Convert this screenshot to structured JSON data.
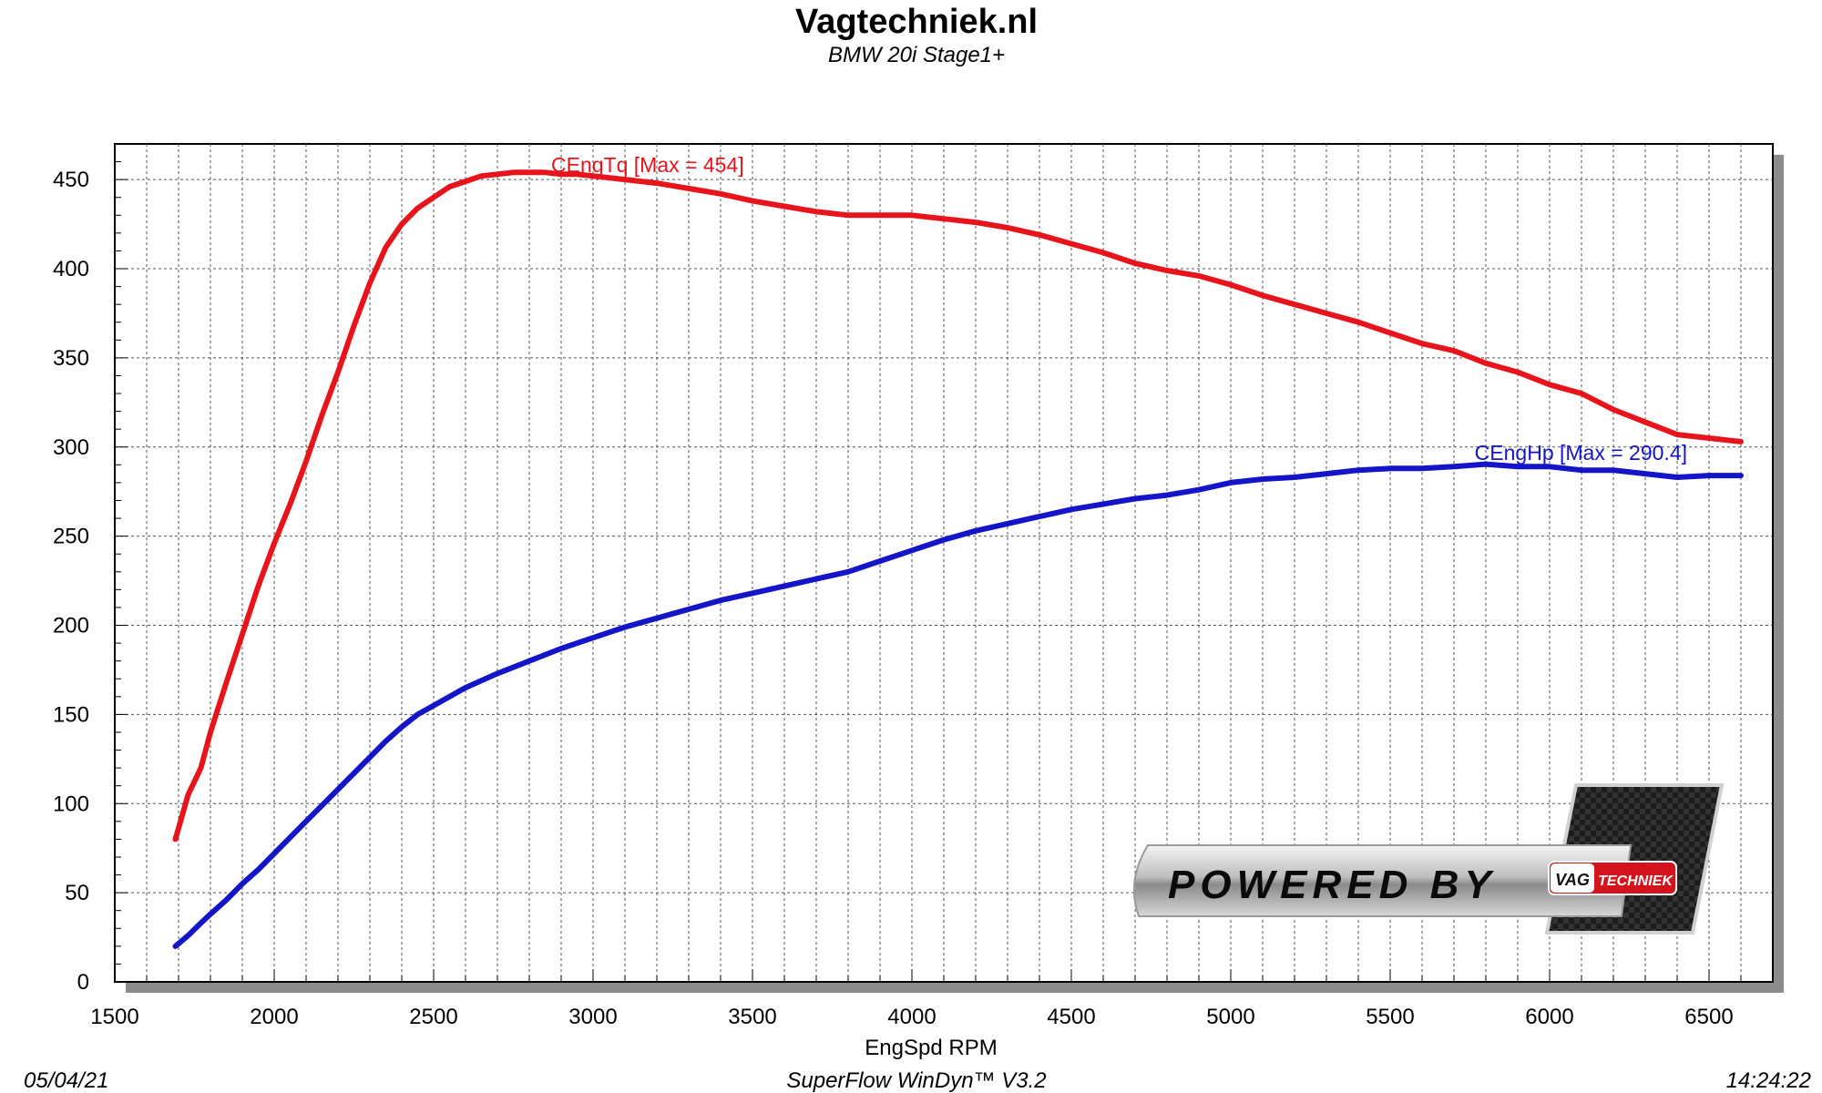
{
  "header": {
    "title": "Vagtechniek.nl",
    "subtitle": "BMW 20i Stage1+"
  },
  "footer": {
    "date": "05/04/21",
    "software": "SuperFlow WinDyn™  V3.2",
    "time": "14:24:22"
  },
  "logo": {
    "text": "POWERED BY",
    "brand_left": "VAG",
    "brand_right": "TECHNIEK"
  },
  "chart_data": {
    "type": "line",
    "title": "Vagtechniek.nl",
    "subtitle": "BMW 20i Stage1+",
    "xlabel": "EngSpd RPM",
    "ylabel": "",
    "xlim": [
      1500,
      6700
    ],
    "ylim": [
      0,
      470
    ],
    "x_ticks": [
      1500,
      2000,
      2500,
      3000,
      3500,
      4000,
      4500,
      5000,
      5500,
      6000,
      6500
    ],
    "y_ticks": [
      0,
      50,
      100,
      150,
      200,
      250,
      300,
      350,
      400,
      450
    ],
    "grid": true,
    "series": [
      {
        "name": "CEngTq",
        "label": "CEngTq [Max = 454]",
        "color": "#e8141c",
        "x": [
          1690,
          1730,
          1770,
          1800,
          1850,
          1900,
          1950,
          2000,
          2050,
          2100,
          2150,
          2200,
          2250,
          2300,
          2350,
          2400,
          2450,
          2500,
          2550,
          2600,
          2650,
          2700,
          2750,
          2800,
          2850,
          2900,
          2950,
          3000,
          3100,
          3200,
          3300,
          3400,
          3500,
          3600,
          3700,
          3800,
          3900,
          4000,
          4100,
          4200,
          4300,
          4400,
          4500,
          4600,
          4700,
          4800,
          4900,
          5000,
          5100,
          5200,
          5300,
          5400,
          5500,
          5600,
          5700,
          5800,
          5900,
          6000,
          6100,
          6200,
          6300,
          6400,
          6500,
          6600
        ],
        "values": [
          80,
          105,
          120,
          140,
          168,
          195,
          222,
          246,
          268,
          292,
          318,
          342,
          368,
          392,
          412,
          425,
          434,
          440,
          446,
          449,
          452,
          453,
          454,
          454,
          454,
          453,
          453,
          452,
          450,
          448,
          445,
          442,
          438,
          435,
          432,
          430,
          430,
          430,
          428,
          426,
          423,
          419,
          414,
          409,
          403,
          399,
          396,
          391,
          385,
          380,
          375,
          370,
          364,
          358,
          354,
          347,
          342,
          335,
          330,
          321,
          314,
          307,
          305,
          303
        ]
      },
      {
        "name": "CEngHp",
        "label": "CEngHp [Max = 290.4]",
        "color": "#1414c8",
        "x": [
          1690,
          1730,
          1770,
          1800,
          1850,
          1900,
          1950,
          2000,
          2050,
          2100,
          2150,
          2200,
          2250,
          2300,
          2350,
          2400,
          2450,
          2500,
          2600,
          2700,
          2800,
          2900,
          3000,
          3100,
          3200,
          3300,
          3400,
          3500,
          3600,
          3700,
          3800,
          3900,
          4000,
          4100,
          4200,
          4300,
          4400,
          4500,
          4600,
          4700,
          4800,
          4900,
          5000,
          5100,
          5200,
          5300,
          5400,
          5500,
          5600,
          5700,
          5800,
          5900,
          6000,
          6100,
          6200,
          6300,
          6400,
          6500,
          6600
        ],
        "values": [
          20,
          26,
          33,
          38,
          46,
          55,
          63,
          72,
          81,
          90,
          99,
          108,
          117,
          126,
          135,
          143,
          150,
          155,
          165,
          173,
          180,
          187,
          193,
          199,
          204,
          209,
          214,
          218,
          222,
          226,
          230,
          236,
          242,
          248,
          253,
          257,
          261,
          265,
          268,
          271,
          273,
          276,
          280,
          282,
          283,
          285,
          287,
          288,
          288,
          289,
          290.4,
          289,
          289,
          287,
          287,
          285,
          283,
          284,
          284
        ]
      }
    ]
  }
}
